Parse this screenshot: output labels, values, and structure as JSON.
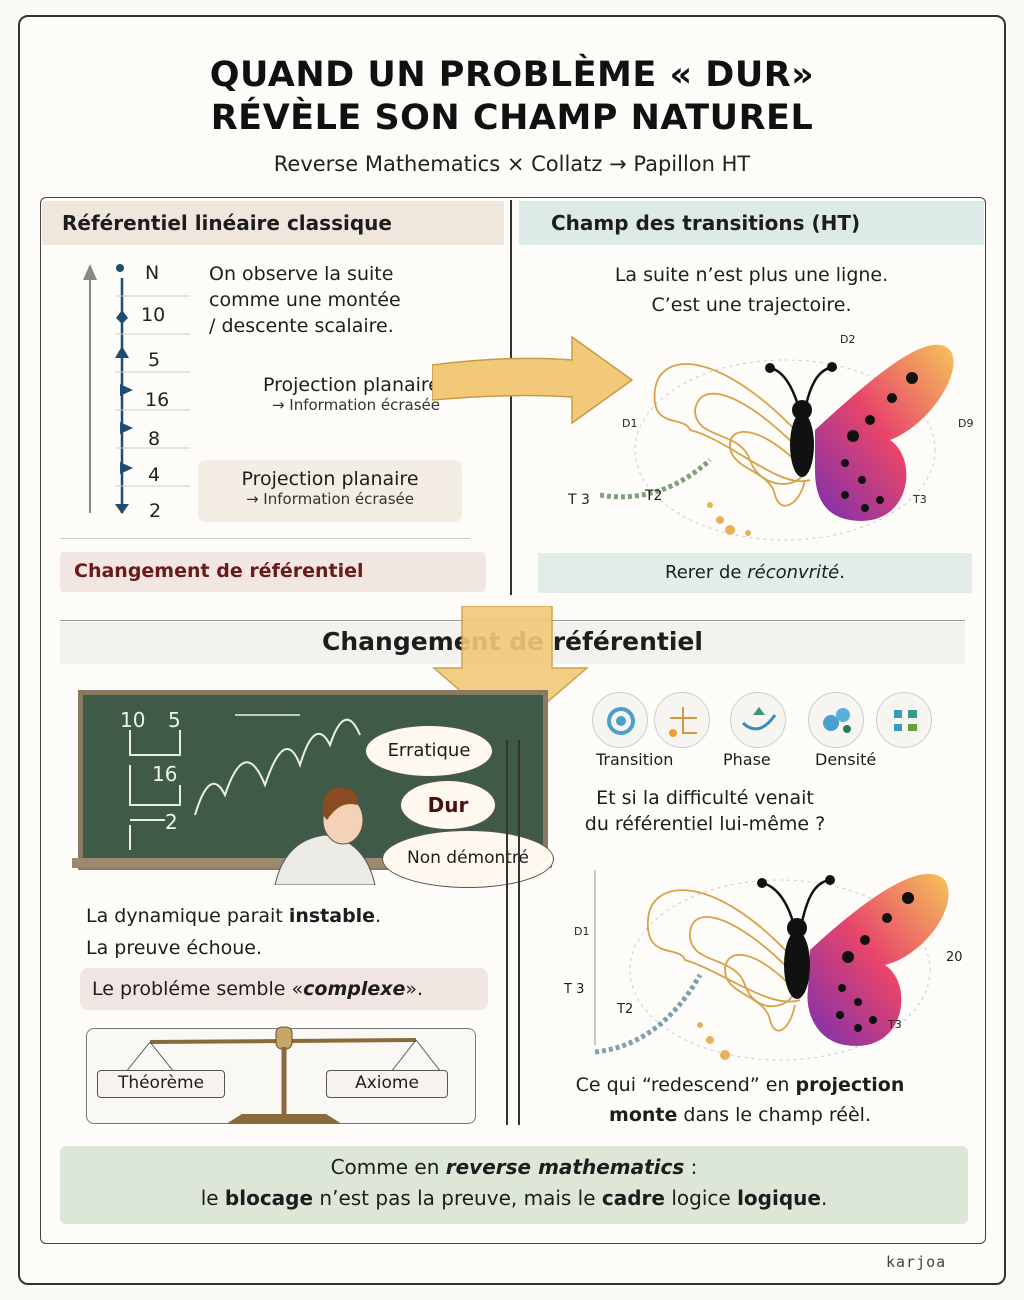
{
  "header": {
    "title_line1": "QUAND UN PROBLÈME « DUR»",
    "title_line2": "RÉVÈLE SON CHAMP NATUREL",
    "subtitle": "Reverse Mathematics × Collatz → Papillon HT"
  },
  "left_panel": {
    "title": "Référentiel linéaire classique",
    "axis_labels": [
      "N",
      "10",
      "5",
      "16",
      "8",
      "4",
      "2"
    ],
    "observe_text": [
      "On observe la suite",
      "comme une montée",
      "/ descente scalaire."
    ],
    "projection1": {
      "title": "Projection planaire",
      "note": "→ Information écrasée"
    },
    "projection2": {
      "title": "Projection planaire",
      "note": "→ Information écrasée"
    },
    "change_label": "Changement de référentiel"
  },
  "right_panel": {
    "title": "Champ des transitions  (HT)",
    "text": [
      "La suite n’est plus une ligne.",
      "C’est une trajectoire."
    ],
    "butterfly_labels": {
      "d1": "D1",
      "d2": "D2",
      "d9": "D9",
      "t3_left": "T 3",
      "t2": "T2",
      "t3_right": "T3"
    },
    "footer_prefix": "Rerer de ",
    "footer_italic": "réconvrité",
    "footer_suffix": "."
  },
  "section": {
    "title": "Changement de référentiel"
  },
  "blackboard": {
    "numbers": [
      "10",
      "5",
      "16",
      "2"
    ],
    "bubbles": [
      "Erratique",
      "Dur",
      "Non démontré"
    ]
  },
  "lower_left": {
    "line1_prefix": "La dynamique parait ",
    "line1_bold": "instable",
    "line1_suffix": ".",
    "line2": "La preuve échoue.",
    "line3_prefix": "Le probléme semble «",
    "line3_italic": "complexe",
    "line3_suffix": "».",
    "scale": {
      "left": "Théorème",
      "right": "Axiome"
    }
  },
  "lower_right": {
    "icons": [
      {
        "name": "spiral-icon"
      },
      {
        "name": "branch-icon"
      },
      {
        "name": "arc-icon"
      },
      {
        "name": "dots-icon"
      },
      {
        "name": "grid-icon"
      }
    ],
    "icon_labels": [
      "Transition",
      "Phase",
      "Densité"
    ],
    "question": [
      "Et si la difficulté venait",
      "du référentiel lui-même ?"
    ],
    "butterfly_labels": {
      "d1": "D1",
      "t3": "T 3",
      "t2": "T2",
      "n20": "20",
      "t3_right": "T3"
    },
    "caption_line1_prefix": "Ce qui “redescend” en ",
    "caption_line1_bold": "projection",
    "caption_line2_bold": "monte",
    "caption_line2_suffix": " dans le champ réèl."
  },
  "footer": {
    "line1_prefix": "Comme en ",
    "line1_bold": "reverse mathematics",
    "line1_suffix": " :",
    "line2_a": "le ",
    "line2_b": "blocage",
    "line2_c": " n’est pas la preuve, mais le ",
    "line2_d": "cadre",
    "line2_e": " logice ",
    "line2_f": "logique",
    "line2_g": "."
  },
  "signature": "karjoa",
  "colors": {
    "accent_arrow": "#f0c46a",
    "left_header": "#efe6dc",
    "right_header": "#dcebe8",
    "dark_red": "#6b1a1a",
    "footer_box": "#dde7d8"
  }
}
